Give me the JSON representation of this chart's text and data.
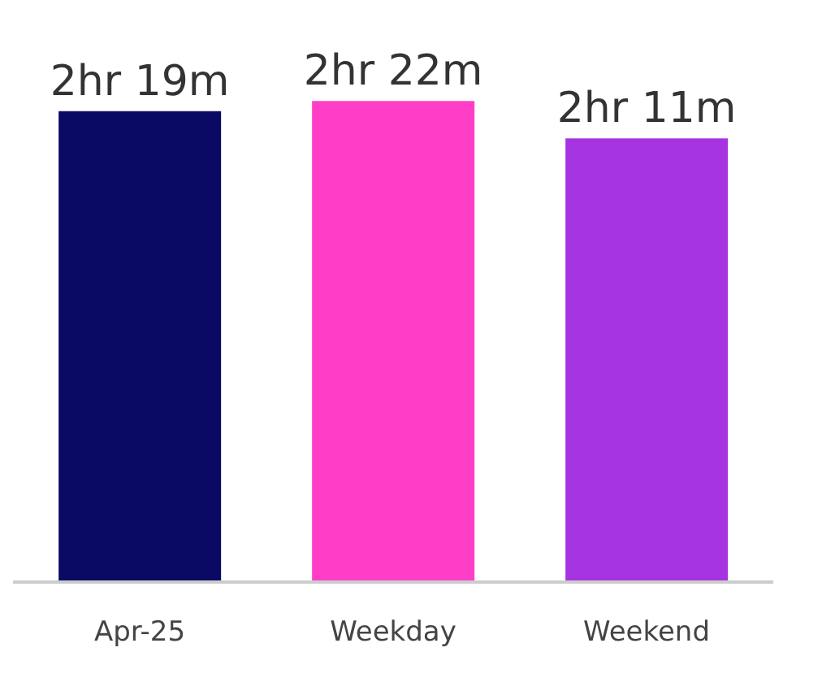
{
  "chart_data": {
    "type": "bar",
    "categories": [
      "Apr-25",
      "Weekday",
      "Weekend"
    ],
    "values": [
      2.317,
      2.367,
      2.183
    ],
    "colors": [
      "#0a0a64",
      "#ff3ec8",
      "#a633e0"
    ],
    "value_labels": [
      "2hr 19m",
      "2hr 22m",
      "2hr 11m"
    ],
    "tick_labels": "x"
  }
}
